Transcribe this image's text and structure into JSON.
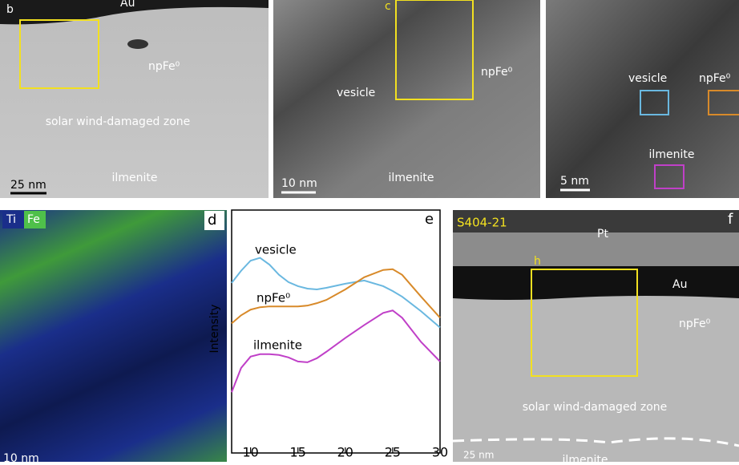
{
  "panels": {
    "b": {
      "label": "b",
      "au": "Au",
      "np": "npFe⁰",
      "zone": "solar wind-damaged zone",
      "mineral": "ilmenite",
      "scale": "25 nm"
    },
    "c": {
      "label": "c",
      "np": "npFe⁰",
      "vesicle": "vesicle",
      "mineral": "ilmenite",
      "scale": "10 nm"
    },
    "right": {
      "vesicle": "vesicle",
      "np": "npFe⁰",
      "mineral": "ilmenite",
      "scale": "5 nm"
    },
    "d": {
      "label": "d",
      "ti": "Ti",
      "fe": "Fe",
      "scale": "10 nm"
    },
    "f": {
      "label": "f",
      "sample": "S404-21",
      "pt": "Pt",
      "h": "h",
      "au": "Au",
      "np": "npFe⁰",
      "zone": "solar wind-damaged zone",
      "mineral": "ilmenite",
      "scale": "25 nm"
    }
  },
  "chart_data": {
    "type": "line",
    "label": "e",
    "y_label": "Intensity",
    "x": [
      8,
      9,
      10,
      11,
      12,
      13,
      14,
      15,
      16,
      17,
      18,
      20,
      22,
      24,
      25,
      26,
      28,
      30
    ],
    "series": [
      {
        "name": "vesicle",
        "color": "#6ab8e0",
        "values": [
          4.2,
          4.5,
          4.75,
          4.82,
          4.65,
          4.4,
          4.22,
          4.12,
          4.06,
          4.04,
          4.08,
          4.18,
          4.26,
          4.12,
          4.0,
          3.86,
          3.5,
          3.1
        ]
      },
      {
        "name": "npFe⁰",
        "color": "#d88a2a",
        "values": [
          3.2,
          3.4,
          3.54,
          3.6,
          3.62,
          3.62,
          3.62,
          3.62,
          3.64,
          3.7,
          3.78,
          4.04,
          4.34,
          4.52,
          4.54,
          4.4,
          3.86,
          3.34
        ]
      },
      {
        "name": "ilmenite",
        "color": "#c040c8",
        "values": [
          1.5,
          2.1,
          2.38,
          2.44,
          2.44,
          2.42,
          2.36,
          2.26,
          2.24,
          2.34,
          2.5,
          2.84,
          3.16,
          3.46,
          3.52,
          3.34,
          2.74,
          2.26
        ]
      }
    ],
    "xlim": [
      8,
      30
    ],
    "xticks": [
      10,
      15,
      20,
      25,
      30
    ],
    "ylim": [
      0,
      6
    ]
  }
}
